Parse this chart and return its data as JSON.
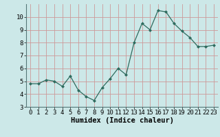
{
  "x": [
    0,
    1,
    2,
    3,
    4,
    5,
    6,
    7,
    8,
    9,
    10,
    11,
    12,
    13,
    14,
    15,
    16,
    17,
    18,
    19,
    20,
    21,
    22,
    23
  ],
  "y": [
    4.8,
    4.8,
    5.1,
    5.0,
    4.6,
    5.4,
    4.3,
    3.8,
    3.5,
    4.5,
    5.2,
    6.0,
    5.5,
    8.0,
    9.5,
    9.0,
    10.5,
    10.4,
    9.5,
    8.9,
    8.4,
    7.7,
    7.7,
    7.8
  ],
  "xlabel": "Humidex (Indice chaleur)",
  "ylim": [
    3,
    11
  ],
  "xlim": [
    -0.5,
    23.5
  ],
  "yticks": [
    3,
    4,
    5,
    6,
    7,
    8,
    9,
    10
  ],
  "xticks": [
    0,
    1,
    2,
    3,
    4,
    5,
    6,
    7,
    8,
    9,
    10,
    11,
    12,
    13,
    14,
    15,
    16,
    17,
    18,
    19,
    20,
    21,
    22,
    23
  ],
  "line_color": "#2e6b5e",
  "marker_color": "#2e6b5e",
  "bg_color": "#cce8e8",
  "grid_color": "#cc9999",
  "tick_fontsize": 6.5,
  "xlabel_fontsize": 7.5
}
